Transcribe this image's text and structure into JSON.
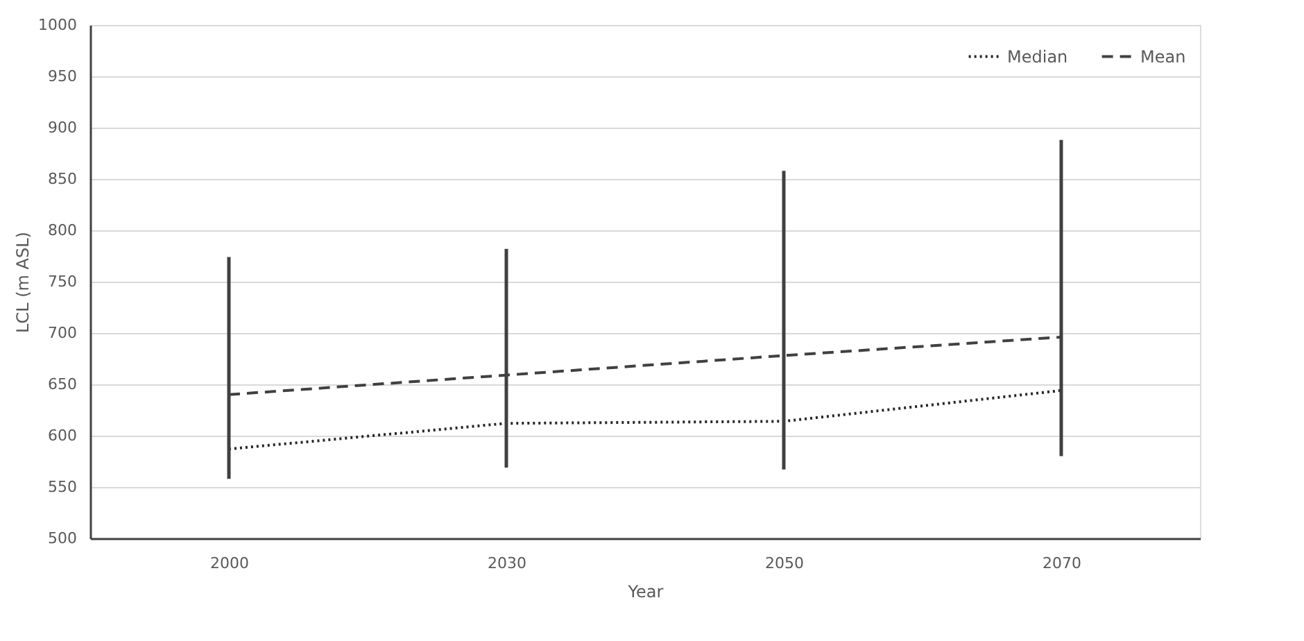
{
  "chart_data": {
    "type": "line",
    "xlabel": "Year",
    "ylabel": "LCL (m ASL)",
    "categories": [
      "2000",
      "2030",
      "2050",
      "2070"
    ],
    "series": [
      {
        "name": "Median",
        "color": "#262626",
        "line_style": "dotted",
        "values": [
          587,
          612,
          614,
          644
        ]
      },
      {
        "name": "Mean",
        "color": "#404040",
        "line_style": "dashed",
        "values": [
          640,
          659,
          678,
          696
        ],
        "errors": [
          [
            558,
            774
          ],
          [
            569,
            782
          ],
          [
            567,
            858
          ],
          [
            580,
            888
          ]
        ]
      }
    ],
    "ylim": [
      500,
      1000
    ],
    "yticks": [
      500,
      550,
      600,
      650,
      700,
      750,
      800,
      850,
      900,
      950,
      1000
    ],
    "grid": "y",
    "legend": "top right",
    "marker": "none"
  }
}
